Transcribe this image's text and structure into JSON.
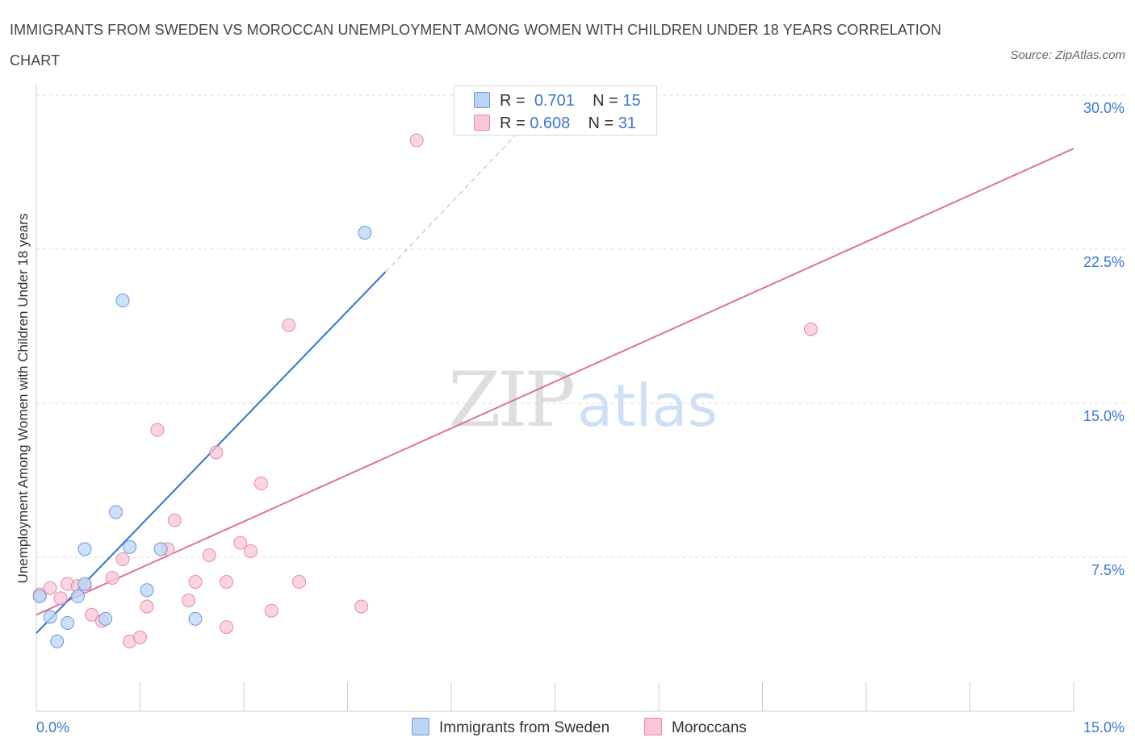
{
  "title": "IMMIGRANTS FROM SWEDEN VS MOROCCAN UNEMPLOYMENT AMONG WOMEN WITH CHILDREN UNDER 18 YEARS CORRELATION CHART",
  "source": "Source: ZipAtlas.com",
  "watermark": {
    "zip": "ZIP",
    "atlas": "atlas"
  },
  "legend": {
    "r_label": "R =",
    "n_label": "N =",
    "rows": [
      {
        "r": "0.701",
        "n": "15"
      },
      {
        "r": "0.608",
        "n": "31"
      }
    ]
  },
  "bottom_legend": [
    "Immigrants from Sweden",
    "Moroccans"
  ],
  "colors": {
    "sweden_fill": "#bcd5f7",
    "sweden_stroke": "#6a9ad8",
    "sweden_line": "#2f74d0",
    "moroccan_fill": "#f8c6d6",
    "moroccan_stroke": "#e88aa8",
    "moroccan_line": "#e0709a",
    "axis_label": "#3a78d0",
    "grid": "#dddddd"
  },
  "chart_data": {
    "type": "scatter",
    "title": "IMMIGRANTS FROM SWEDEN VS MOROCCAN UNEMPLOYMENT AMONG WOMEN WITH CHILDREN UNDER 18 YEARS CORRELATION CHART",
    "xlabel": "",
    "ylabel": "Unemployment Among Women with Children Under 18 years",
    "xlim": [
      0,
      15
    ],
    "ylim": [
      0,
      30
    ],
    "x_tick_labels": [
      "0.0%",
      "15.0%"
    ],
    "y_ticks": [
      7.5,
      15.0,
      22.5,
      30.0
    ],
    "y_tick_labels": [
      "7.5%",
      "15.0%",
      "22.5%",
      "30.0%"
    ],
    "grid": true,
    "series": [
      {
        "name": "Immigrants from Sweden",
        "points": [
          [
            0.05,
            5.6
          ],
          [
            0.2,
            4.6
          ],
          [
            0.3,
            3.4
          ],
          [
            0.45,
            4.3
          ],
          [
            0.6,
            5.6
          ],
          [
            0.7,
            7.9
          ],
          [
            0.7,
            6.2
          ],
          [
            1.0,
            4.5
          ],
          [
            1.15,
            9.7
          ],
          [
            1.25,
            20.0
          ],
          [
            1.35,
            8.0
          ],
          [
            1.6,
            5.9
          ],
          [
            1.8,
            7.9
          ],
          [
            2.3,
            4.5
          ],
          [
            4.75,
            23.3
          ]
        ],
        "trend": {
          "x0": 0.0,
          "y0": 3.8,
          "x1": 5.05,
          "y1": 21.4,
          "dashed_to_x": 7.0,
          "dashed_to_y": 28.3
        }
      },
      {
        "name": "Moroccans",
        "points": [
          [
            0.05,
            5.7
          ],
          [
            0.2,
            6.0
          ],
          [
            0.35,
            5.5
          ],
          [
            0.45,
            6.2
          ],
          [
            0.6,
            6.1
          ],
          [
            0.7,
            6.1
          ],
          [
            0.8,
            4.7
          ],
          [
            0.95,
            4.4
          ],
          [
            1.1,
            6.5
          ],
          [
            1.25,
            7.4
          ],
          [
            1.35,
            3.4
          ],
          [
            1.5,
            3.6
          ],
          [
            1.6,
            5.1
          ],
          [
            1.75,
            13.7
          ],
          [
            1.9,
            7.9
          ],
          [
            2.0,
            9.3
          ],
          [
            2.2,
            5.4
          ],
          [
            2.3,
            6.3
          ],
          [
            2.5,
            7.6
          ],
          [
            2.6,
            12.6
          ],
          [
            2.75,
            6.3
          ],
          [
            2.75,
            4.1
          ],
          [
            2.95,
            8.2
          ],
          [
            3.1,
            7.8
          ],
          [
            3.25,
            11.1
          ],
          [
            3.4,
            4.9
          ],
          [
            3.65,
            18.8
          ],
          [
            3.8,
            6.3
          ],
          [
            4.7,
            5.1
          ],
          [
            5.5,
            27.8
          ],
          [
            11.2,
            18.6
          ]
        ],
        "trend": {
          "x0": 0.0,
          "y0": 4.7,
          "x1": 15.0,
          "y1": 27.4
        }
      }
    ]
  }
}
